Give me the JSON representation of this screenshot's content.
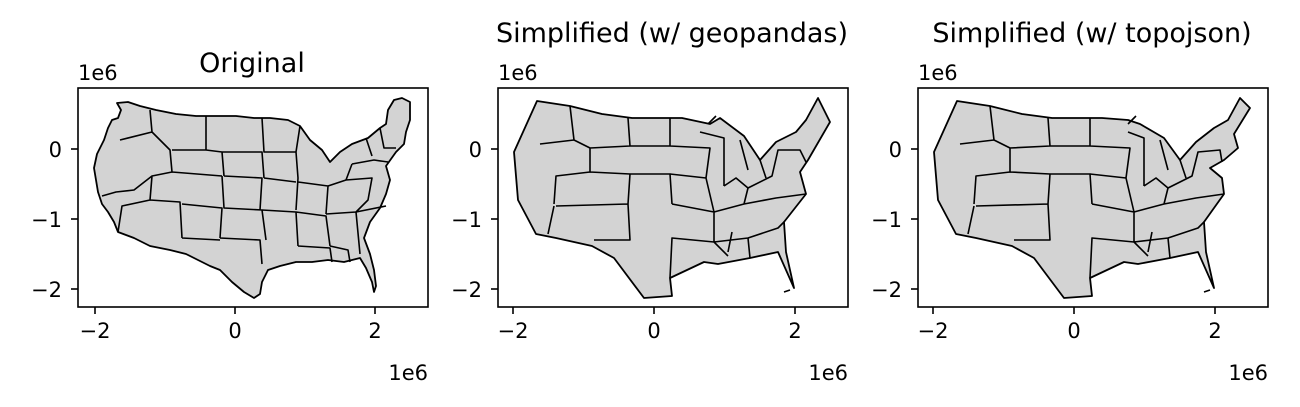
{
  "figure": {
    "background": "#ffffff",
    "fill_color": "#d3d3d3",
    "edge_color": "#000000"
  },
  "chart_data": [
    {
      "type": "map",
      "title": "Original",
      "geometry_style": "detailed",
      "xlim": [
        -2.3,
        2.7
      ],
      "ylim": [
        -2.3,
        0.87
      ],
      "xticks": [
        -2,
        0,
        2
      ],
      "xtick_labels": [
        "−2",
        "0",
        "2"
      ],
      "yticks": [
        0,
        -1,
        -2
      ],
      "ytick_labels": [
        "0",
        "−1",
        "−2"
      ],
      "x_offset_label": "1e6",
      "y_offset_label": "1e6"
    },
    {
      "type": "map",
      "title": "Simplified (w/ geopandas)",
      "geometry_style": "simplified-gaps",
      "xlim": [
        -2.3,
        2.7
      ],
      "ylim": [
        -2.3,
        0.87
      ],
      "xticks": [
        -2,
        0,
        2
      ],
      "xtick_labels": [
        "−2",
        "0",
        "2"
      ],
      "yticks": [
        0,
        -1,
        -2
      ],
      "ytick_labels": [
        "0",
        "−1",
        "−2"
      ],
      "x_offset_label": "1e6",
      "y_offset_label": "1e6"
    },
    {
      "type": "map",
      "title": "Simplified (w/ topojson)",
      "geometry_style": "simplified-topological",
      "xlim": [
        -2.3,
        2.7
      ],
      "ylim": [
        -2.3,
        0.87
      ],
      "xticks": [
        -2,
        0,
        2
      ],
      "xtick_labels": [
        "−2",
        "0",
        "2"
      ],
      "yticks": [
        0,
        -1,
        -2
      ],
      "ytick_labels": [
        "0",
        "−1",
        "−2"
      ],
      "x_offset_label": "1e6",
      "y_offset_label": "1e6"
    }
  ]
}
